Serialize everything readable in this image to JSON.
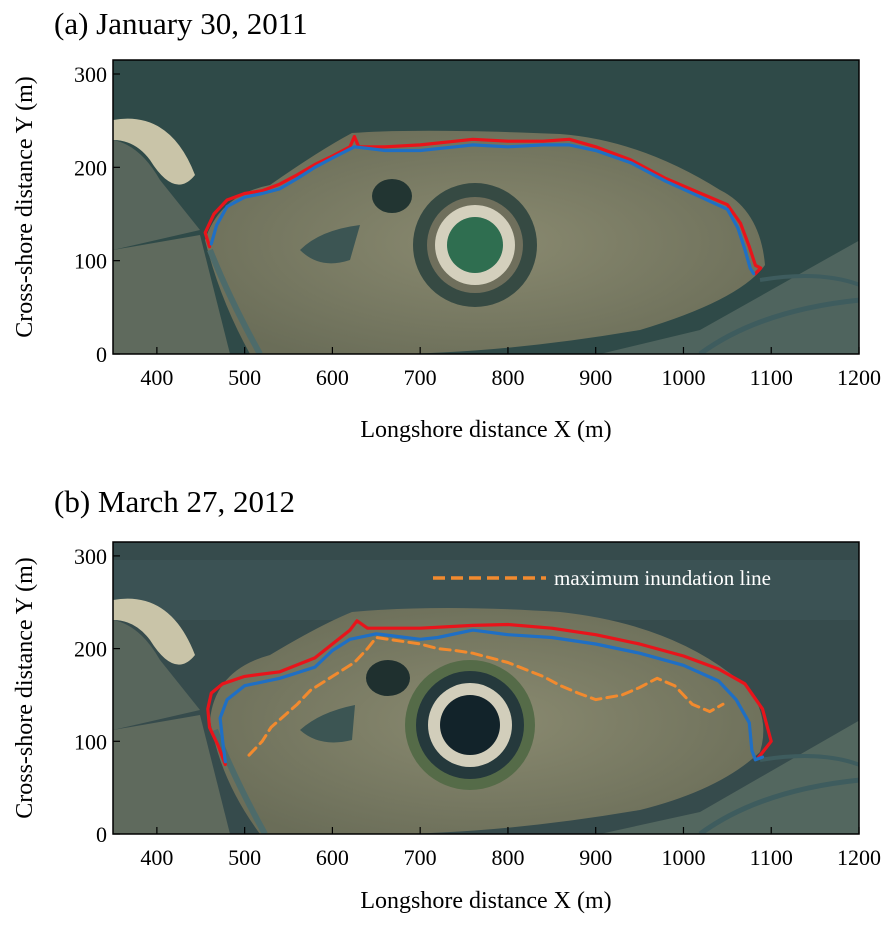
{
  "panels": [
    {
      "title": "(a) January 30, 2011",
      "xlabel": "Longshore distance X (m)",
      "ylabel": "Cross-shore distance Y (m)",
      "xlim": [
        350,
        1200
      ],
      "ylim": [
        0,
        315
      ],
      "xticks": [
        "400",
        "500",
        "600",
        "700",
        "800",
        "900",
        "1000",
        "1100",
        "1200"
      ],
      "yticks": [
        "0",
        "100",
        "200",
        "300"
      ]
    },
    {
      "title": "(b) March 27, 2012",
      "xlabel": "Longshore distance X (m)",
      "ylabel": "Cross-shore distance Y (m)",
      "xlim": [
        350,
        1200
      ],
      "ylim": [
        0,
        315
      ],
      "xticks": [
        "400",
        "500",
        "600",
        "700",
        "800",
        "900",
        "1000",
        "1100",
        "1200"
      ],
      "yticks": [
        "0",
        "100",
        "200",
        "300"
      ],
      "legend": {
        "label": "maximum inundation line",
        "placement": "top-right"
      }
    }
  ],
  "colors": {
    "red_line": "#e8141b",
    "blue_line": "#1f6fc4",
    "orange_dashed": "#f28a2e",
    "water": "#2f4a48",
    "land": "#7d7c62"
  },
  "chart_data": [
    {
      "type": "line",
      "title": "(a) January 30, 2011",
      "xlabel": "Longshore distance X (m)",
      "ylabel": "Cross-shore distance Y (m)",
      "xlim": [
        350,
        1200
      ],
      "ylim": [
        0,
        315
      ],
      "background": "aerial photograph",
      "grid": false,
      "series": [
        {
          "color": "#e8141b",
          "x": [
            460,
            455,
            465,
            480,
            500,
            520,
            540,
            560,
            580,
            600,
            620,
            625,
            630,
            660,
            700,
            740,
            760,
            800,
            840,
            870,
            900,
            940,
            980,
            1020,
            1050,
            1065,
            1075,
            1082,
            1088,
            1082
          ],
          "y": [
            115,
            130,
            150,
            165,
            172,
            175,
            182,
            192,
            203,
            212,
            222,
            233,
            222,
            222,
            224,
            228,
            230,
            228,
            228,
            230,
            222,
            208,
            188,
            172,
            160,
            140,
            115,
            95,
            92,
            86
          ]
        },
        {
          "color": "#1f6fc4",
          "x": [
            462,
            468,
            480,
            500,
            520,
            540,
            560,
            580,
            600,
            625,
            660,
            700,
            740,
            760,
            800,
            840,
            870,
            900,
            940,
            980,
            1020,
            1050,
            1062,
            1070,
            1076,
            1080
          ],
          "y": [
            118,
            138,
            158,
            168,
            172,
            177,
            188,
            200,
            210,
            222,
            218,
            218,
            222,
            224,
            222,
            224,
            224,
            218,
            205,
            185,
            168,
            155,
            135,
            112,
            92,
            86
          ]
        }
      ]
    },
    {
      "type": "line",
      "title": "(b) March 27, 2012",
      "xlabel": "Longshore distance X (m)",
      "ylabel": "Cross-shore distance Y (m)",
      "xlim": [
        350,
        1200
      ],
      "ylim": [
        0,
        315
      ],
      "background": "aerial photograph",
      "grid": false,
      "legend_placement": "top-right",
      "series": [
        {
          "color": "#e8141b",
          "x": [
            478,
            470,
            460,
            458,
            462,
            475,
            500,
            540,
            580,
            600,
            620,
            628,
            640,
            700,
            760,
            800,
            850,
            900,
            950,
            1000,
            1040,
            1070,
            1090,
            1100,
            1085
          ],
          "y": [
            75,
            95,
            115,
            135,
            152,
            162,
            170,
            175,
            190,
            205,
            220,
            230,
            222,
            222,
            225,
            226,
            222,
            215,
            205,
            192,
            178,
            162,
            135,
            100,
            82
          ]
        },
        {
          "color": "#1f6fc4",
          "x": [
            478,
            475,
            472,
            480,
            500,
            540,
            580,
            600,
            620,
            650,
            700,
            720,
            760,
            800,
            850,
            900,
            950,
            1000,
            1040,
            1060,
            1075,
            1078,
            1082,
            1090
          ],
          "y": [
            78,
            100,
            125,
            145,
            160,
            168,
            180,
            198,
            210,
            216,
            210,
            212,
            220,
            215,
            212,
            205,
            195,
            182,
            165,
            145,
            120,
            90,
            80,
            83
          ]
        },
        {
          "name": "maximum inundation line",
          "color": "#f28a2e",
          "dashed": true,
          "x": [
            505,
            520,
            530,
            560,
            575,
            600,
            625,
            640,
            650,
            700,
            720,
            740,
            760,
            800,
            840,
            860,
            880,
            900,
            930,
            950,
            970,
            990,
            1010,
            1030,
            1045
          ],
          "y": [
            85,
            100,
            115,
            140,
            155,
            170,
            185,
            200,
            212,
            205,
            200,
            198,
            195,
            185,
            170,
            160,
            152,
            145,
            150,
            158,
            168,
            160,
            140,
            132,
            140
          ]
        }
      ]
    }
  ]
}
